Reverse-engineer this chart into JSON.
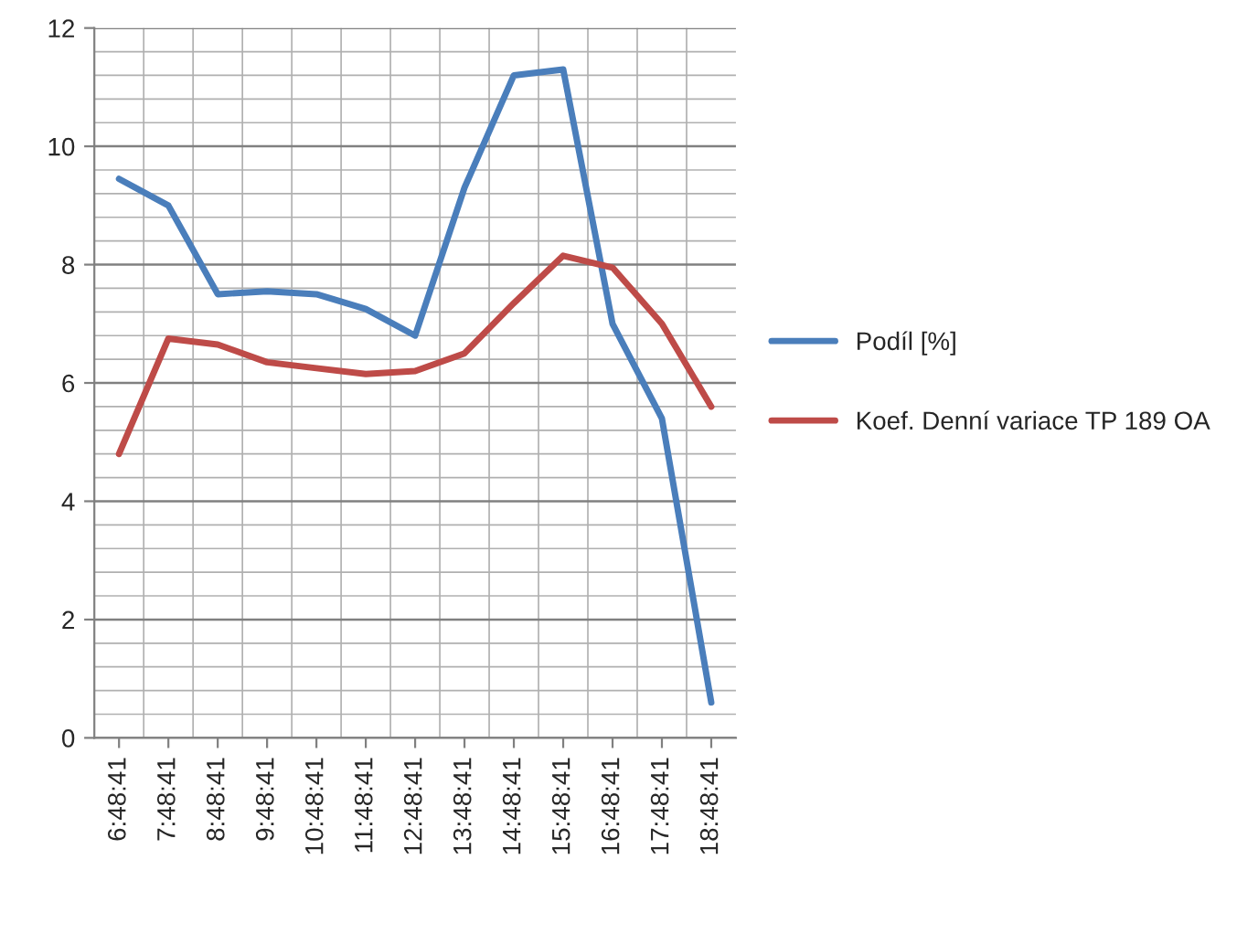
{
  "chart_data": {
    "type": "line",
    "categories": [
      "6:48:41",
      "7:48:41",
      "8:48:41",
      "9:48:41",
      "10:48:41",
      "11:48:41",
      "12:48:41",
      "13:48:41",
      "14:48:41",
      "15:48:41",
      "16:48:41",
      "17:48:41",
      "18:48:41"
    ],
    "series": [
      {
        "name": "Podíl [%]",
        "color": "#4a7ebb",
        "values": [
          9.45,
          9.0,
          7.5,
          7.55,
          7.5,
          7.25,
          6.8,
          9.3,
          11.2,
          11.3,
          7.0,
          5.4,
          0.6
        ]
      },
      {
        "name": "Koef. Denní variace TP 189 OA",
        "color": "#be4b48",
        "values": [
          4.8,
          6.75,
          6.65,
          6.35,
          6.25,
          6.15,
          6.2,
          6.5,
          7.35,
          8.15,
          7.95,
          7.0,
          5.6
        ]
      }
    ],
    "ylim": [
      0,
      12
    ],
    "yticks": [
      0,
      2,
      4,
      6,
      8,
      10,
      12
    ],
    "grid": true,
    "legend": "right",
    "marker": "none",
    "line_style": "solid"
  }
}
